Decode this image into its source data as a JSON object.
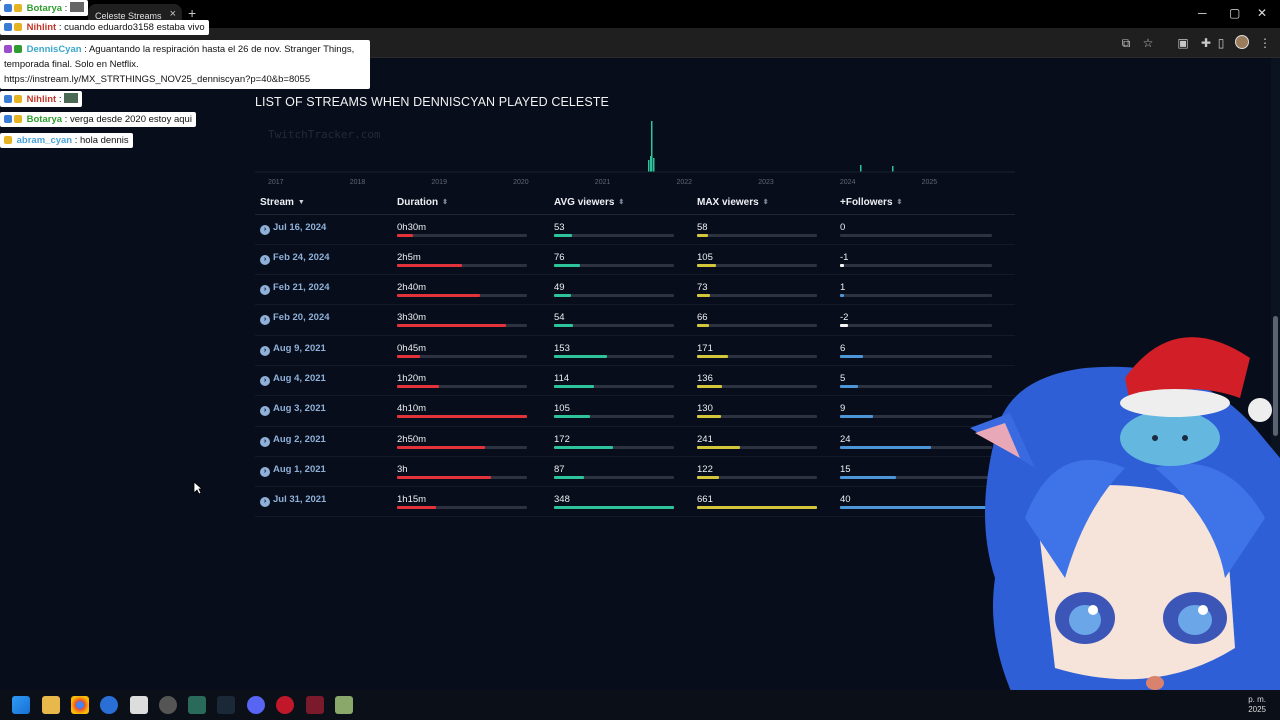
{
  "browser": {
    "tab_title": "Celeste Streams",
    "tab_close": "×",
    "new_tab": "+"
  },
  "page": {
    "heading": "LIST OF STREAMS WHEN DENNISCYAN PLAYED CELESTE",
    "watermark": "TwitchTracker.com",
    "timeline_years": [
      "2017",
      "2018",
      "2019",
      "2020",
      "2021",
      "2022",
      "2023",
      "2024",
      "2025"
    ],
    "columns": {
      "stream": "Stream",
      "duration": "Duration",
      "avg": "AVG viewers",
      "max": "MAX viewers",
      "followers": "+Followers"
    },
    "rows": [
      {
        "date": "Jul 16, 2024",
        "duration": "0h30m",
        "dur_frac": 0.12,
        "avg": "53",
        "avg_frac": 0.15,
        "max": "58",
        "max_frac": 0.09,
        "followers": "0",
        "fol_frac": 0.0,
        "fol_color": "blue"
      },
      {
        "date": "Feb 24, 2024",
        "duration": "2h5m",
        "dur_frac": 0.5,
        "avg": "76",
        "avg_frac": 0.22,
        "max": "105",
        "max_frac": 0.16,
        "followers": "-1",
        "fol_frac": 0.025,
        "fol_color": "white"
      },
      {
        "date": "Feb 21, 2024",
        "duration": "2h40m",
        "dur_frac": 0.64,
        "avg": "49",
        "avg_frac": 0.14,
        "max": "73",
        "max_frac": 0.11,
        "followers": "1",
        "fol_frac": 0.025,
        "fol_color": "blue"
      },
      {
        "date": "Feb 20, 2024",
        "duration": "3h30m",
        "dur_frac": 0.84,
        "avg": "54",
        "avg_frac": 0.16,
        "max": "66",
        "max_frac": 0.1,
        "followers": "-2",
        "fol_frac": 0.05,
        "fol_color": "white"
      },
      {
        "date": "Aug 9, 2021",
        "duration": "0h45m",
        "dur_frac": 0.18,
        "avg": "153",
        "avg_frac": 0.44,
        "max": "171",
        "max_frac": 0.26,
        "followers": "6",
        "fol_frac": 0.15,
        "fol_color": "blue"
      },
      {
        "date": "Aug 4, 2021",
        "duration": "1h20m",
        "dur_frac": 0.32,
        "avg": "114",
        "avg_frac": 0.33,
        "max": "136",
        "max_frac": 0.21,
        "followers": "5",
        "fol_frac": 0.12,
        "fol_color": "blue"
      },
      {
        "date": "Aug 3, 2021",
        "duration": "4h10m",
        "dur_frac": 1.0,
        "avg": "105",
        "avg_frac": 0.3,
        "max": "130",
        "max_frac": 0.2,
        "followers": "9",
        "fol_frac": 0.22,
        "fol_color": "blue"
      },
      {
        "date": "Aug 2, 2021",
        "duration": "2h50m",
        "dur_frac": 0.68,
        "avg": "172",
        "avg_frac": 0.49,
        "max": "241",
        "max_frac": 0.36,
        "followers": "24",
        "fol_frac": 0.6,
        "fol_color": "blue"
      },
      {
        "date": "Aug 1, 2021",
        "duration": "3h",
        "dur_frac": 0.72,
        "avg": "87",
        "avg_frac": 0.25,
        "max": "122",
        "max_frac": 0.18,
        "followers": "15",
        "fol_frac": 0.37,
        "fol_color": "blue"
      },
      {
        "date": "Jul 31, 2021",
        "duration": "1h15m",
        "dur_frac": 0.3,
        "avg": "348",
        "avg_frac": 1.0,
        "max": "661",
        "max_frac": 1.0,
        "followers": "40",
        "fol_frac": 1.0,
        "fol_color": "blue"
      }
    ]
  },
  "chat": [
    {
      "user": "Botarya",
      "user_color": "#2e9d2e",
      "text": ""
    },
    {
      "user": "Nihlint",
      "user_color": "#c0392b",
      "text": "cuando eduardo3158 estaba vivo"
    },
    {
      "user": "DennisCyan",
      "user_color": "#3aa7c8",
      "text": "Aguantando la respiración hasta el 26 de nov. Stranger Things, temporada final. Solo en Netflix. https://instream.ly/MX_STRTHINGS_NOV25_denniscyan?p=40&b=8055"
    },
    {
      "user": "Nihlint",
      "user_color": "#c0392b",
      "text": ""
    },
    {
      "user": "Botarya",
      "user_color": "#2e9d2e",
      "text": "verga desde 2020 estoy aqui"
    },
    {
      "user": "abram_cyan",
      "user_color": "#4aa3d8",
      "text": "hola dennis"
    }
  ],
  "taskbar": {
    "clock_line1": "p. m.",
    "clock_line2": "2025"
  },
  "colors": {
    "duration_bar": "#e2323a",
    "avg_bar": "#2ec39a",
    "max_bar": "#d4c63a",
    "followers_bar": "#4c96d8"
  }
}
